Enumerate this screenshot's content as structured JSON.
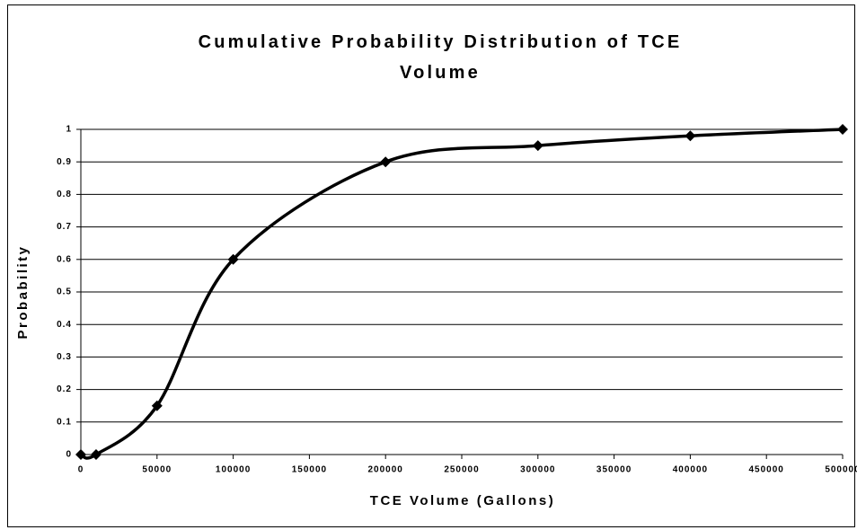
{
  "chart_data": {
    "type": "line",
    "title": "Cumulative Probability Distribution of TCE Volume",
    "x_label": "TCE Volume (Gallons)",
    "y_label": "Probability",
    "x": [
      0,
      10000,
      50000,
      100000,
      200000,
      300000,
      400000,
      500000
    ],
    "values": [
      0,
      0,
      0.15,
      0.6,
      0.9,
      0.95,
      0.98,
      1
    ],
    "color": "#000000",
    "smooth": true,
    "marker": "diamond",
    "xlim": [
      0,
      500000
    ],
    "xticks": [
      0,
      50000,
      100000,
      150000,
      200000,
      250000,
      300000,
      350000,
      400000,
      450000,
      500000
    ],
    "ylim": [
      0,
      1
    ],
    "yticks": [
      0,
      0.1,
      0.2,
      0.3,
      0.4,
      0.5,
      0.6,
      0.7,
      0.8,
      0.9,
      1
    ],
    "grid": true
  }
}
